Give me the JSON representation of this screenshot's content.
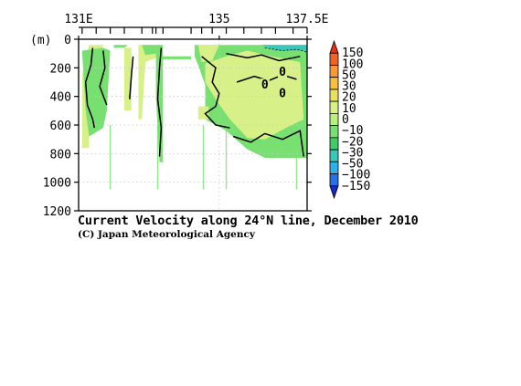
{
  "caption": {
    "title": "Current Velocity along 24°N line, December 2010",
    "credit": "(C) Japan Meteorological Agency"
  },
  "chart_data": {
    "type": "heatmap",
    "title": "Current Velocity along 24°N line, December 2010",
    "x_tick_labels": [
      "131E",
      "135",
      "137.5E"
    ],
    "x_ticks": [
      131,
      135,
      137.5
    ],
    "xlim": [
      131,
      137.5
    ],
    "y_unit_label": "(m)",
    "y_tick_labels": [
      "0",
      "200",
      "400",
      "600",
      "800",
      "1000",
      "1200"
    ],
    "y_ticks": [
      0,
      200,
      400,
      600,
      800,
      1000,
      1200
    ],
    "ylim": [
      0,
      1200
    ],
    "y_inverted": true,
    "colorbar": {
      "labels": [
        "150",
        "100",
        "50",
        "30",
        "20",
        "10",
        "0",
        "−10",
        "−20",
        "−30",
        "−50",
        "−100",
        "−150"
      ],
      "colors": [
        "#e83018",
        "#f06428",
        "#f89838",
        "#f8c040",
        "#e8e060",
        "#d8f088",
        "#b8f078",
        "#78e070",
        "#40cc68",
        "#38c8b8",
        "#30b0e8",
        "#2870e8",
        "#1828c8"
      ]
    },
    "contour_labels": [
      "0",
      "0",
      "0"
    ],
    "station_longitudes": [
      131.1,
      131.5,
      131.9,
      132.3,
      132.8,
      133.1,
      133.2,
      133.4,
      134.2,
      134.5,
      134.8,
      135.2,
      135.7,
      136.2,
      136.6,
      137.1,
      137.5
    ],
    "grid": true
  },
  "colors": {
    "warm_fill": "#d8f088",
    "cool_fill": "#78e070",
    "cold_fill": "#38c8b8"
  }
}
